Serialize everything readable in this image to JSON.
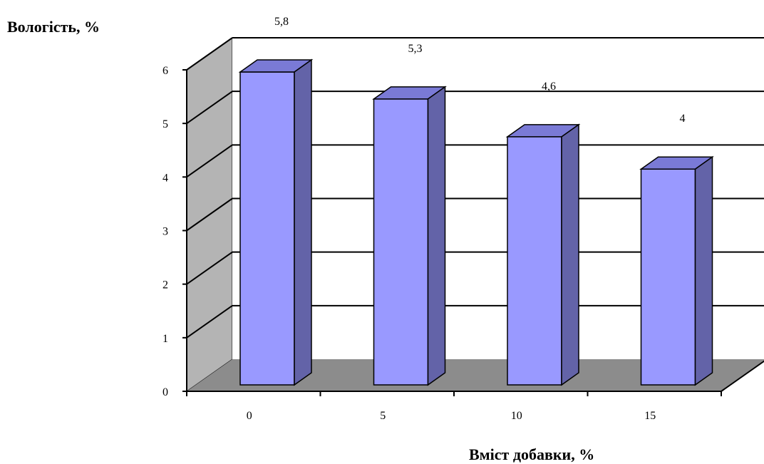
{
  "chart_data": {
    "type": "bar",
    "ylabel": "Вологість,  %",
    "xlabel": "Вміст добавки,  %",
    "categories": [
      "0",
      "5",
      "10",
      "15"
    ],
    "values": [
      5.8,
      5.3,
      4.6,
      4.0
    ],
    "data_labels": [
      "5,8",
      "5,3",
      "4,6",
      "4"
    ],
    "y_ticks": [
      "0",
      "1",
      "2",
      "3",
      "4",
      "5",
      "6"
    ],
    "ylim": [
      0,
      6
    ],
    "grid": true,
    "three_d": true,
    "colors": {
      "bar_front": "#9999ff",
      "bar_top": "#7a7ad6",
      "bar_side": "#6363a8",
      "wall": "#b4b4b4",
      "floor": "#8c8c8c"
    }
  }
}
